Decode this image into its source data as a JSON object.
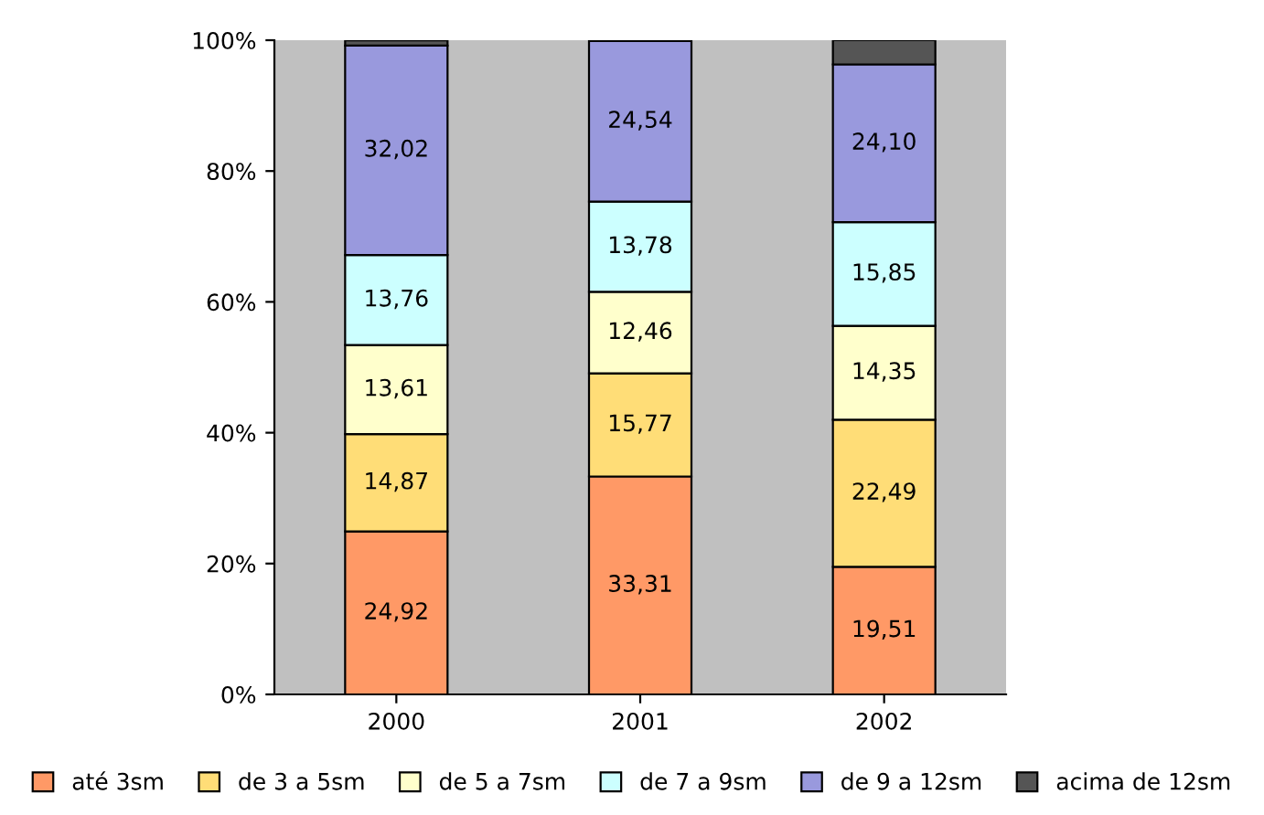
{
  "chart_data": {
    "type": "bar",
    "stacked": true,
    "categories": [
      "2000",
      "2001",
      "2002"
    ],
    "series": [
      {
        "name": "até 3sm",
        "color": "#ff9966",
        "values": [
          24.92,
          33.31,
          19.51
        ],
        "value_labels": [
          "24,92",
          "33,31",
          "19,51"
        ]
      },
      {
        "name": "de 3 a 5sm",
        "color": "#ffdd77",
        "values": [
          14.87,
          15.77,
          22.49
        ],
        "value_labels": [
          "14,87",
          "15,77",
          "22,49"
        ]
      },
      {
        "name": "de 5 a 7sm",
        "color": "#ffffcc",
        "values": [
          13.61,
          12.46,
          14.35
        ],
        "value_labels": [
          "13,61",
          "12,46",
          "14,35"
        ]
      },
      {
        "name": "de 7 a 9sm",
        "color": "#ccffff",
        "values": [
          13.76,
          13.78,
          15.85
        ],
        "value_labels": [
          "13,76",
          "13,78",
          "15,85"
        ]
      },
      {
        "name": "de 9 a 12sm",
        "color": "#9999dd",
        "values": [
          32.02,
          24.54,
          24.1
        ],
        "value_labels": [
          "32,02",
          "24,54",
          "24,10"
        ]
      },
      {
        "name": "acima de 12sm",
        "color": "#555555",
        "values": [
          0.8,
          null,
          3.7
        ]
      }
    ],
    "ylim": [
      0,
      100
    ],
    "yticks": [
      {
        "value": 0,
        "label": "0%"
      },
      {
        "value": 20,
        "label": "20%"
      },
      {
        "value": 40,
        "label": "40%"
      },
      {
        "value": 60,
        "label": "60%"
      },
      {
        "value": 80,
        "label": "80%"
      },
      {
        "value": 100,
        "label": "100%"
      }
    ],
    "grid": false,
    "legend": "bottom"
  }
}
